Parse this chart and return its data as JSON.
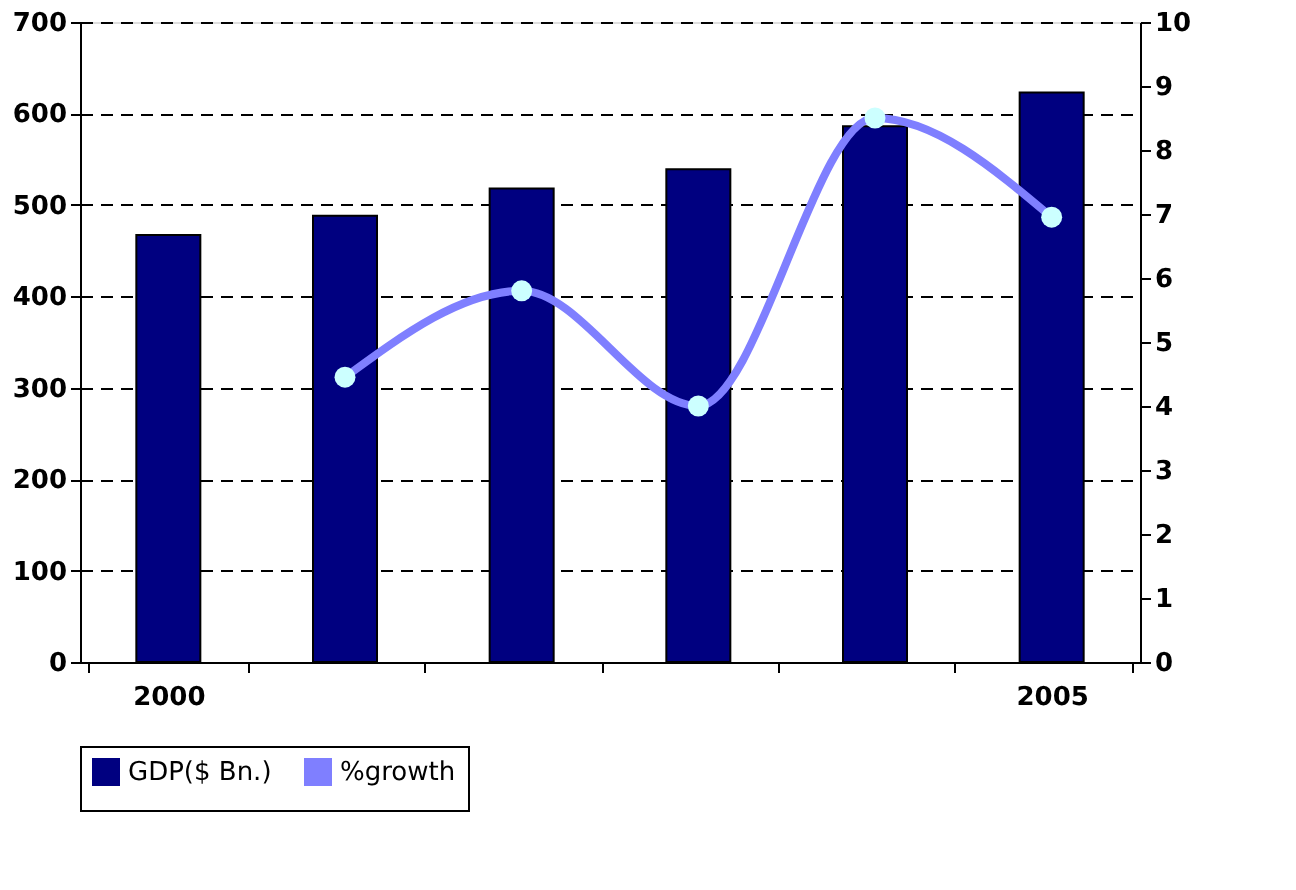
{
  "chart_data": {
    "type": "bar",
    "categories": [
      "2000",
      null,
      null,
      null,
      null,
      "2005"
    ],
    "series": [
      {
        "name": "GDP($ Bn.)",
        "color": "#000080",
        "values": [
          467,
          488,
          518,
          539,
          586,
          623
        ]
      },
      {
        "name": "%growth",
        "type": "line",
        "axis": "y2",
        "color": "#7f7fff",
        "marker": "circle",
        "values": [
          null,
          4.45,
          5.8,
          4.0,
          8.5,
          6.95
        ]
      }
    ],
    "ylim": [
      0,
      700
    ],
    "yticks": [
      0,
      100,
      200,
      300,
      400,
      500,
      600,
      700
    ],
    "y2lim": [
      0,
      10
    ],
    "y2ticks": [
      0,
      1,
      2,
      3,
      4,
      5,
      6,
      7,
      8,
      9,
      10
    ],
    "grid": "y",
    "legend": "bottom",
    "line_style": "solid"
  }
}
